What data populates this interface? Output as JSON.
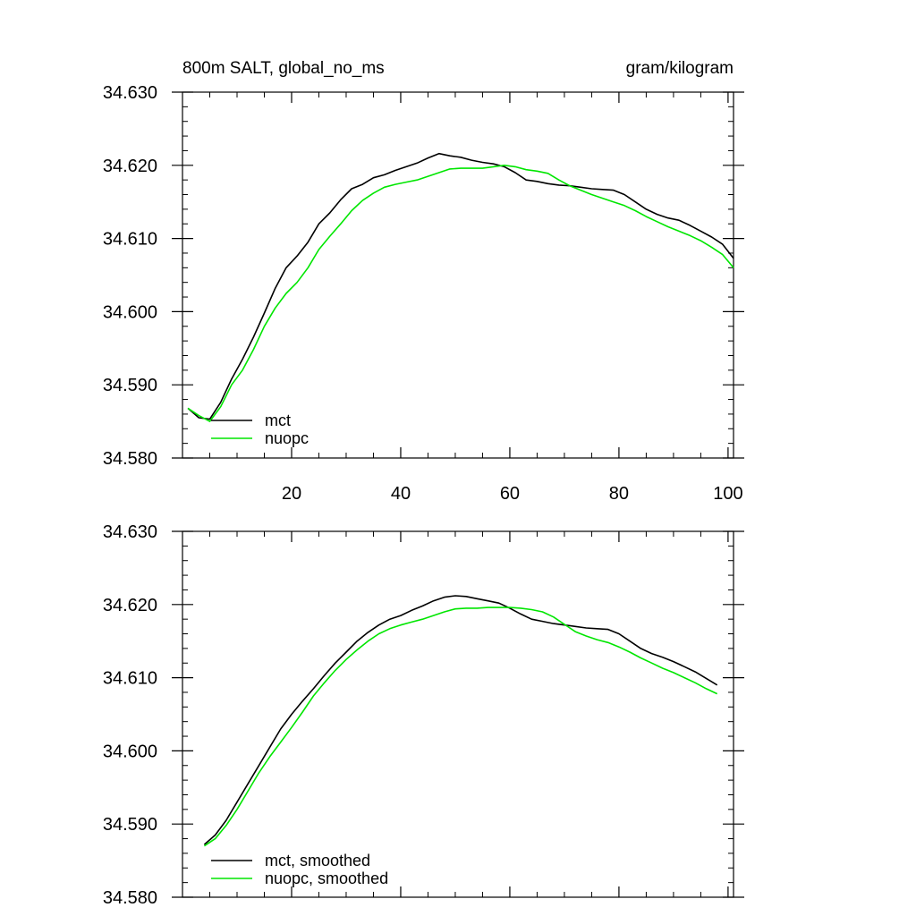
{
  "colors": {
    "mct": "#000000",
    "nuopc": "#00e600",
    "axis": "#000000",
    "background": "#ffffff"
  },
  "chart_data": [
    {
      "type": "line",
      "title": "800m SALT, global_no_ms",
      "units": "gram/kilogram",
      "xlim": [
        0,
        101
      ],
      "ylim": [
        34.58,
        34.63
      ],
      "xticks": [
        20,
        40,
        60,
        80,
        100
      ],
      "xtick_labels": [
        "20",
        "40",
        "60",
        "80",
        "100"
      ],
      "yticks": [
        34.58,
        34.59,
        34.6,
        34.61,
        34.62,
        34.63
      ],
      "ytick_labels": [
        "34.580",
        "34.590",
        "34.600",
        "34.610",
        "34.620",
        "34.630"
      ],
      "legend_position": "bottom-left",
      "series": [
        {
          "name": "mct",
          "x": [
            1,
            3,
            5,
            7,
            9,
            11,
            13,
            15,
            17,
            19,
            21,
            23,
            25,
            27,
            29,
            31,
            33,
            35,
            37,
            39,
            41,
            43,
            45,
            47,
            49,
            51,
            53,
            55,
            57,
            59,
            61,
            63,
            65,
            67,
            69,
            71,
            73,
            75,
            77,
            79,
            81,
            83,
            85,
            87,
            89,
            91,
            93,
            95,
            97,
            99,
            101
          ],
          "y": [
            34.5868,
            34.5855,
            34.5853,
            34.5876,
            34.5908,
            34.5935,
            34.5965,
            34.5998,
            34.6032,
            34.606,
            34.6076,
            34.6095,
            34.612,
            34.6135,
            34.6153,
            34.6168,
            34.6174,
            34.6183,
            34.6187,
            34.6193,
            34.6198,
            34.6203,
            34.621,
            34.6216,
            34.6213,
            34.6211,
            34.6207,
            34.6204,
            34.6202,
            34.6198,
            34.619,
            34.618,
            34.6178,
            34.6175,
            34.6173,
            34.6172,
            34.617,
            34.6168,
            34.6167,
            34.6166,
            34.616,
            34.615,
            34.614,
            34.6133,
            34.6128,
            34.6125,
            34.6118,
            34.611,
            34.6102,
            34.6092,
            34.6073
          ]
        },
        {
          "name": "nuopc",
          "x": [
            1,
            3,
            5,
            7,
            9,
            11,
            13,
            15,
            17,
            19,
            21,
            23,
            25,
            27,
            29,
            31,
            33,
            35,
            37,
            39,
            41,
            43,
            45,
            47,
            49,
            51,
            53,
            55,
            57,
            59,
            61,
            63,
            65,
            67,
            69,
            71,
            73,
            75,
            77,
            79,
            81,
            83,
            85,
            87,
            89,
            91,
            93,
            95,
            97,
            99,
            101
          ],
          "y": [
            34.5868,
            34.5858,
            34.585,
            34.587,
            34.59,
            34.592,
            34.5948,
            34.598,
            34.6005,
            34.6025,
            34.604,
            34.606,
            34.6085,
            34.6103,
            34.612,
            34.6138,
            34.6152,
            34.6162,
            34.617,
            34.6174,
            34.6177,
            34.618,
            34.6185,
            34.619,
            34.6195,
            34.6196,
            34.6196,
            34.6196,
            34.6198,
            34.62,
            34.6198,
            34.6194,
            34.6192,
            34.6189,
            34.618,
            34.6172,
            34.6166,
            34.616,
            34.6155,
            34.615,
            34.6145,
            34.6138,
            34.613,
            34.6123,
            34.6116,
            34.611,
            34.6104,
            34.6097,
            34.6088,
            34.6078,
            34.606
          ]
        }
      ]
    },
    {
      "type": "line",
      "xlim": [
        0,
        101
      ],
      "ylim": [
        34.58,
        34.63
      ],
      "xticks": [
        20,
        40,
        60,
        80,
        100
      ],
      "yticks": [
        34.58,
        34.59,
        34.6,
        34.61,
        34.62,
        34.63
      ],
      "ytick_labels": [
        "34.580",
        "34.590",
        "34.600",
        "34.610",
        "34.620",
        "34.630"
      ],
      "legend_position": "bottom-left",
      "series": [
        {
          "name": "mct, smoothed",
          "x": [
            4,
            6,
            8,
            10,
            12,
            14,
            16,
            18,
            20,
            22,
            24,
            26,
            28,
            30,
            32,
            34,
            36,
            38,
            40,
            42,
            44,
            46,
            48,
            50,
            52,
            54,
            56,
            58,
            60,
            62,
            64,
            66,
            68,
            70,
            72,
            74,
            76,
            78,
            80,
            82,
            84,
            86,
            88,
            90,
            92,
            94,
            96,
            98
          ],
          "y": [
            34.5872,
            34.5885,
            34.5905,
            34.593,
            34.5955,
            34.598,
            34.6005,
            34.603,
            34.605,
            34.6068,
            34.6085,
            34.6103,
            34.612,
            34.6135,
            34.615,
            34.6162,
            34.6172,
            34.618,
            34.6185,
            34.6192,
            34.6198,
            34.6205,
            34.621,
            34.6212,
            34.6211,
            34.6208,
            34.6205,
            34.6202,
            34.6195,
            34.6187,
            34.618,
            34.6177,
            34.6174,
            34.6172,
            34.617,
            34.6168,
            34.6167,
            34.6166,
            34.616,
            34.615,
            34.614,
            34.6133,
            34.6128,
            34.6122,
            34.6115,
            34.6108,
            34.6099,
            34.609
          ]
        },
        {
          "name": "nuopc, smoothed",
          "x": [
            4,
            6,
            8,
            10,
            12,
            14,
            16,
            18,
            20,
            22,
            24,
            26,
            28,
            30,
            32,
            34,
            36,
            38,
            40,
            42,
            44,
            46,
            48,
            50,
            52,
            54,
            56,
            58,
            60,
            62,
            64,
            66,
            68,
            70,
            72,
            74,
            76,
            78,
            80,
            82,
            84,
            86,
            88,
            90,
            92,
            94,
            96,
            98
          ],
          "y": [
            34.587,
            34.588,
            34.5898,
            34.592,
            34.5945,
            34.597,
            34.5992,
            34.6012,
            34.6032,
            34.6053,
            34.6075,
            34.6093,
            34.611,
            34.6125,
            34.6138,
            34.615,
            34.616,
            34.6167,
            34.6172,
            34.6176,
            34.618,
            34.6185,
            34.619,
            34.6194,
            34.6195,
            34.6195,
            34.6196,
            34.6196,
            34.6196,
            34.6195,
            34.6193,
            34.619,
            34.6183,
            34.6173,
            34.6163,
            34.6157,
            34.6152,
            34.6148,
            34.6142,
            34.6135,
            34.6127,
            34.612,
            34.6113,
            34.6107,
            34.61,
            34.6093,
            34.6085,
            34.6078
          ]
        }
      ]
    }
  ]
}
